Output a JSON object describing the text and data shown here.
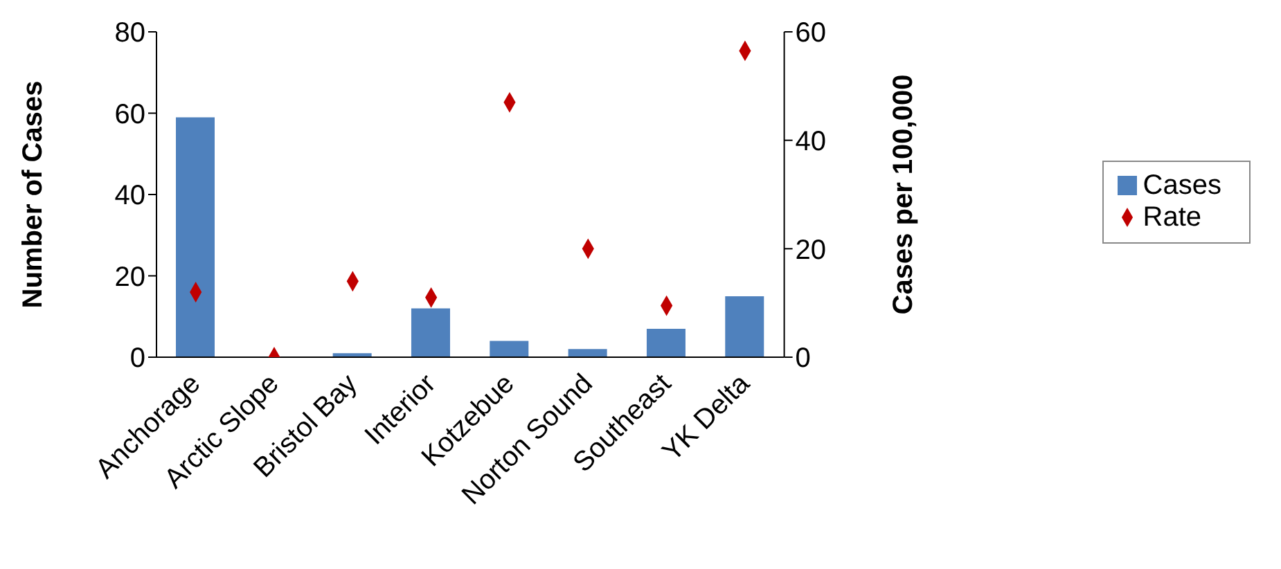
{
  "chart_data": {
    "type": "bar",
    "categories": [
      "Anchorage",
      "Arctic Slope",
      "Bristol Bay",
      "Interior",
      "Kotzebue",
      "Norton Sound",
      "Southeast",
      "YK Delta"
    ],
    "series": [
      {
        "name": "Cases",
        "color": "#4f81bd",
        "values": [
          59,
          0,
          1,
          12,
          4,
          2,
          7,
          15
        ]
      },
      {
        "name": "Rate",
        "type": "scatter",
        "axis": "y2",
        "marker": "diamond",
        "color": "#c00000",
        "values": [
          12,
          0,
          14,
          11,
          47,
          20,
          9.5,
          56.5
        ]
      }
    ],
    "ylabel": "Number of Cases",
    "y2label": "Cases per 100,000",
    "ylim": [
      0,
      80
    ],
    "yticks": [
      0,
      20,
      40,
      60,
      80
    ],
    "y2lim": [
      0,
      60
    ],
    "y2ticks": [
      0,
      20,
      40,
      60
    ],
    "legend": "right"
  }
}
